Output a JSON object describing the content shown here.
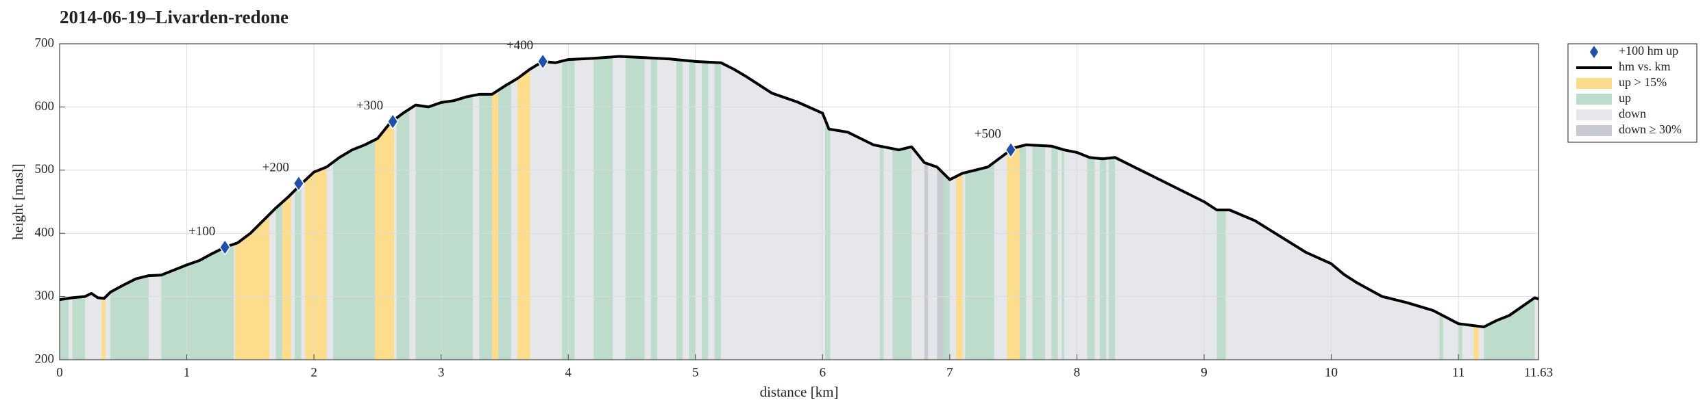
{
  "chart_data": {
    "type": "area",
    "title": "2014-06-19–Livarden-redone",
    "xlabel": "distance [km]",
    "ylabel": "height [masl]",
    "xlim": [
      0,
      11.63
    ],
    "ylim": [
      200,
      700
    ],
    "xticks": [
      0,
      1,
      2,
      3,
      4,
      5,
      6,
      7,
      8,
      9,
      10,
      11,
      11.63
    ],
    "yticks": [
      200,
      300,
      400,
      500,
      600,
      700
    ],
    "grid": true,
    "legend": "outside right",
    "markers": {
      "name": "+100 hm up",
      "color": "#1f4fa8",
      "x": [
        1.3,
        1.88,
        2.62,
        3.8,
        7.48
      ],
      "values": [
        378,
        479,
        577,
        672,
        532
      ],
      "labels": [
        "+100",
        "+200",
        "+300",
        "+400",
        "+500"
      ]
    },
    "profile": {
      "name": "hm vs. km",
      "color": "#000000",
      "x": [
        0,
        0.1,
        0.2,
        0.25,
        0.3,
        0.35,
        0.4,
        0.5,
        0.6,
        0.7,
        0.8,
        0.9,
        1.0,
        1.1,
        1.2,
        1.3,
        1.4,
        1.5,
        1.6,
        1.7,
        1.8,
        1.9,
        2.0,
        2.1,
        2.2,
        2.3,
        2.4,
        2.5,
        2.6,
        2.7,
        2.8,
        2.9,
        3.0,
        3.1,
        3.2,
        3.3,
        3.4,
        3.5,
        3.6,
        3.7,
        3.8,
        3.9,
        4.0,
        4.2,
        4.4,
        4.6,
        4.8,
        5.0,
        5.2,
        5.3,
        5.4,
        5.5,
        5.6,
        5.8,
        6.0,
        6.05,
        6.2,
        6.4,
        6.6,
        6.7,
        6.8,
        6.9,
        7.0,
        7.1,
        7.2,
        7.3,
        7.4,
        7.5,
        7.6,
        7.8,
        7.9,
        8.0,
        8.1,
        8.2,
        8.3,
        8.4,
        8.6,
        8.8,
        9.0,
        9.1,
        9.2,
        9.4,
        9.6,
        9.8,
        10.0,
        10.1,
        10.2,
        10.4,
        10.6,
        10.8,
        11.0,
        11.2,
        11.3,
        11.4,
        11.6,
        11.63
      ],
      "values": [
        295,
        298,
        300,
        305,
        298,
        297,
        307,
        318,
        328,
        333,
        334,
        342,
        350,
        357,
        368,
        378,
        385,
        400,
        420,
        440,
        458,
        478,
        497,
        505,
        520,
        532,
        540,
        550,
        575,
        590,
        603,
        600,
        607,
        610,
        616,
        620,
        620,
        633,
        645,
        660,
        672,
        670,
        675,
        677,
        680,
        678,
        676,
        672,
        670,
        660,
        648,
        635,
        622,
        608,
        590,
        565,
        560,
        540,
        532,
        537,
        512,
        505,
        485,
        495,
        500,
        505,
        520,
        535,
        540,
        538,
        532,
        528,
        520,
        518,
        520,
        510,
        490,
        470,
        450,
        437,
        437,
        420,
        395,
        370,
        352,
        335,
        322,
        300,
        290,
        278,
        257,
        252,
        262,
        270,
        298,
        296
      ]
    },
    "fills": [
      {
        "name": "up > 15%",
        "color": "#fddc8c",
        "spans": [
          [
            0.33,
            0.36
          ],
          [
            1.38,
            1.65
          ],
          [
            1.75,
            1.82
          ],
          [
            1.93,
            2.1
          ],
          [
            2.48,
            2.63
          ],
          [
            3.4,
            3.45
          ],
          [
            3.6,
            3.7
          ],
          [
            7.05,
            7.1
          ],
          [
            7.45,
            7.55
          ],
          [
            11.12,
            11.16
          ]
        ]
      },
      {
        "name": "up",
        "color": "#bddccb",
        "spans": [
          [
            0,
            0.07
          ],
          [
            0.1,
            0.2
          ],
          [
            0.4,
            0.7
          ],
          [
            0.8,
            1.37
          ],
          [
            1.7,
            1.75
          ],
          [
            1.85,
            1.9
          ],
          [
            2.15,
            2.48
          ],
          [
            2.65,
            2.75
          ],
          [
            2.8,
            3.25
          ],
          [
            3.3,
            3.4
          ],
          [
            3.45,
            3.55
          ],
          [
            3.95,
            4.05
          ],
          [
            4.2,
            4.35
          ],
          [
            4.45,
            4.6
          ],
          [
            4.65,
            4.7
          ],
          [
            4.85,
            4.9
          ],
          [
            4.95,
            5.0
          ],
          [
            5.05,
            5.1
          ],
          [
            5.15,
            5.2
          ],
          [
            6.02,
            6.06
          ],
          [
            6.45,
            6.48
          ],
          [
            6.55,
            6.7
          ],
          [
            6.95,
            7.0
          ],
          [
            7.12,
            7.35
          ],
          [
            7.55,
            7.6
          ],
          [
            7.65,
            7.75
          ],
          [
            7.8,
            7.85
          ],
          [
            7.88,
            7.9
          ],
          [
            8.08,
            8.14
          ],
          [
            8.18,
            8.23
          ],
          [
            8.25,
            8.3
          ],
          [
            9.1,
            9.17
          ],
          [
            10.85,
            10.88
          ],
          [
            11.0,
            11.03
          ],
          [
            11.2,
            11.6
          ]
        ]
      },
      {
        "name": "down",
        "color": "#e6e7ea",
        "spans": []
      },
      {
        "name": "down ≥ 30%",
        "color": "#c8cad2",
        "spans": [
          [
            6.8,
            6.83
          ],
          [
            6.9,
            6.95
          ]
        ]
      }
    ]
  }
}
